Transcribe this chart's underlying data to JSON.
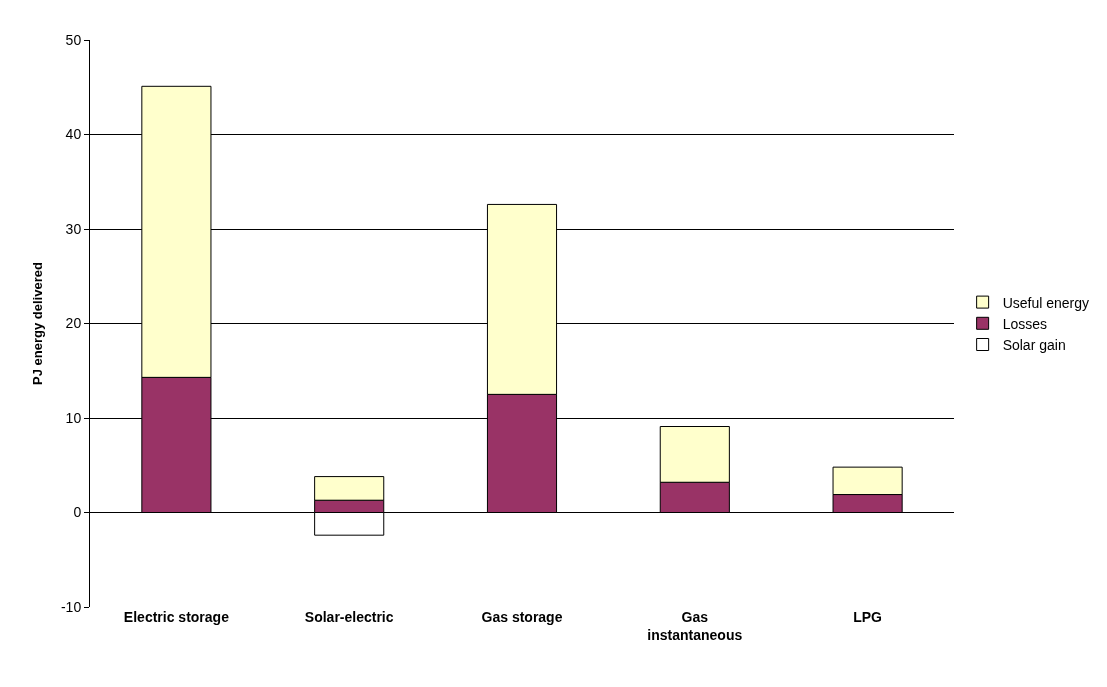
{
  "chart_data": {
    "type": "bar",
    "stacked": true,
    "ylabel": "PJ energy delivered",
    "categories": [
      "Electric storage",
      "Solar-electric",
      "Gas storage",
      "Gas instantaneous",
      "LPG"
    ],
    "series": [
      {
        "name": "Losses",
        "color": "#993366",
        "values": [
          14.3,
          1.3,
          12.5,
          3.2,
          1.9
        ]
      },
      {
        "name": "Useful energy",
        "color": "#ffffcc",
        "values": [
          30.8,
          2.5,
          20.1,
          5.9,
          2.9
        ]
      },
      {
        "name": "Solar gain",
        "color": "#ffffff",
        "values": [
          null,
          -2.4,
          null,
          null,
          null
        ]
      }
    ],
    "ylim": [
      -10,
      50
    ],
    "yticks": [
      -10,
      0,
      10,
      20,
      30,
      40,
      50
    ],
    "grid": "y",
    "legend": "right"
  }
}
